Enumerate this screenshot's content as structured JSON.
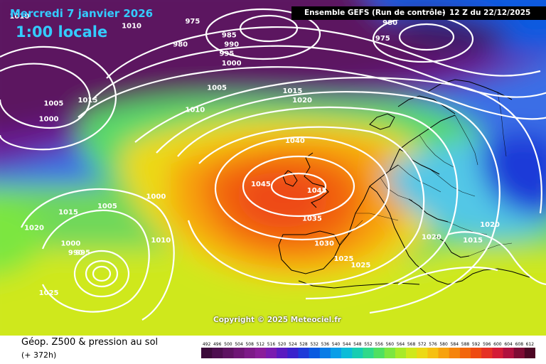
{
  "header": {
    "date": "Mercredi 7 janvier 2026",
    "local_time": "1:00 locale",
    "model_run": "Ensemble GEFS (Run de contrôle)",
    "run_time": "12 Z du 22/12/2025"
  },
  "footer": {
    "parameter": "Géop. Z500 & pression au sol",
    "lead_time": "(+ 372h)"
  },
  "copyright": "Copyright © 2025 Meteociel.fr",
  "legend": {
    "values": [
      492,
      496,
      500,
      504,
      508,
      512,
      516,
      520,
      524,
      528,
      532,
      536,
      540,
      544,
      548,
      552,
      556,
      560,
      564,
      568,
      572,
      576,
      580,
      584,
      588,
      592,
      596,
      600,
      604,
      608,
      612
    ],
    "colors": [
      "#3b0a3a",
      "#4d0e4f",
      "#5e1362",
      "#6e1675",
      "#7d1a88",
      "#8a1d9a",
      "#7a1bb0",
      "#5a1ac0",
      "#3a22cc",
      "#1e3ad8",
      "#0a5ae0",
      "#0a7ce6",
      "#0a9ee8",
      "#0bbcd8",
      "#17cdb2",
      "#2fd98a",
      "#4fe060",
      "#7ce640",
      "#a8ea28",
      "#cfe81c",
      "#ecd916",
      "#f6c012",
      "#f7a20e",
      "#f5840c",
      "#f2660c",
      "#ee4a12",
      "#e53024",
      "#d41b36",
      "#b0103e",
      "#7e0b34",
      "#4d0624"
    ]
  },
  "isobars": [
    {
      "label": "975",
      "x_lon": -30.5,
      "y_lat": 68.2
    },
    {
      "label": "980",
      "x_lon": 10.0,
      "y_lat": 68.0
    },
    {
      "label": "975",
      "x_lon": 8.5,
      "y_lat": 65.5
    },
    {
      "label": "980",
      "x_lon": -33.0,
      "y_lat": 64.5
    },
    {
      "label": "985",
      "x_lon": -23.0,
      "y_lat": 66.0
    },
    {
      "label": "990",
      "x_lon": -22.5,
      "y_lat": 64.5
    },
    {
      "label": "995",
      "x_lon": -23.5,
      "y_lat": 63.0
    },
    {
      "label": "1000",
      "x_lon": -22.5,
      "y_lat": 61.5
    },
    {
      "label": "1005",
      "x_lon": -25.5,
      "y_lat": 57.5
    },
    {
      "label": "1010",
      "x_lon": -43.0,
      "y_lat": 67.5
    },
    {
      "label": "1005",
      "x_lon": -59.0,
      "y_lat": 55.0
    },
    {
      "label": "1000",
      "x_lon": -60.0,
      "y_lat": 52.5
    },
    {
      "label": "1015",
      "x_lon": -52.0,
      "y_lat": 55.5
    },
    {
      "label": "1010",
      "x_lon": -30.0,
      "y_lat": 54.0
    },
    {
      "label": "1015",
      "x_lon": -10.0,
      "y_lat": 57.0
    },
    {
      "label": "1020",
      "x_lon": -8.0,
      "y_lat": 55.5
    },
    {
      "label": "1040",
      "x_lon": -9.5,
      "y_lat": 49.0
    },
    {
      "label": "1045",
      "x_lon": -16.5,
      "y_lat": 42.0
    },
    {
      "label": "1045",
      "x_lon": -5.0,
      "y_lat": 41.0
    },
    {
      "label": "1035",
      "x_lon": -6.0,
      "y_lat": 36.5
    },
    {
      "label": "1030",
      "x_lon": -3.5,
      "y_lat": 32.5
    },
    {
      "label": "1025",
      "x_lon": 0.5,
      "y_lat": 30.0
    },
    {
      "label": "1025",
      "x_lon": 4.0,
      "y_lat": 29.0
    },
    {
      "label": "1020",
      "x_lon": 18.5,
      "y_lat": 33.5
    },
    {
      "label": "1015",
      "x_lon": 27.0,
      "y_lat": 33.0
    },
    {
      "label": "1020",
      "x_lon": 30.5,
      "y_lat": 35.5
    },
    {
      "label": "1000",
      "x_lon": -38.0,
      "y_lat": 40.0
    },
    {
      "label": "1005",
      "x_lon": -48.0,
      "y_lat": 38.5
    },
    {
      "label": "1015",
      "x_lon": -56.0,
      "y_lat": 37.5
    },
    {
      "label": "1020",
      "x_lon": -63.0,
      "y_lat": 35.0
    },
    {
      "label": "1000",
      "x_lon": -55.5,
      "y_lat": 32.5
    },
    {
      "label": "995",
      "x_lon": -53.0,
      "y_lat": 31.0
    },
    {
      "label": "990",
      "x_lon": -54.5,
      "y_lat": 31.0
    },
    {
      "label": "1010",
      "x_lon": -37.0,
      "y_lat": 33.0
    },
    {
      "label": "1025",
      "x_lon": -60.0,
      "y_lat": 24.5
    },
    {
      "label": "1010",
      "x_lon": -66.0,
      "y_lat": 69.0
    }
  ]
}
